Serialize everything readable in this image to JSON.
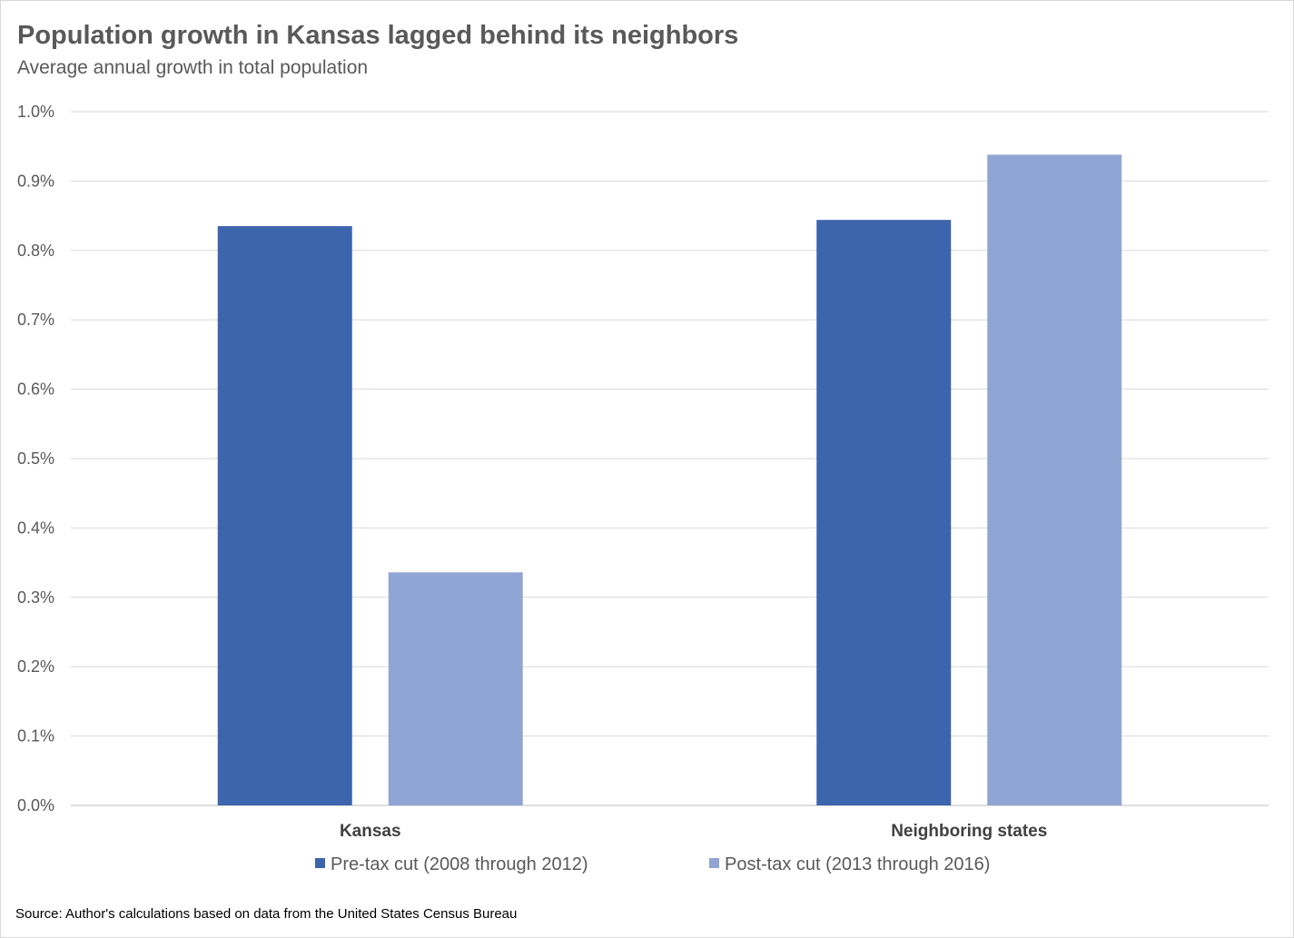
{
  "chart_data": {
    "type": "bar",
    "title": "Population growth in Kansas lagged behind its neighbors",
    "subtitle": "Average annual growth in total population",
    "categories": [
      "Kansas",
      "Neighboring states"
    ],
    "series": [
      {
        "name": "Pre-tax cut (2008 through 2012)",
        "values": [
          0.835,
          0.844
        ],
        "color": "#3c65ad"
      },
      {
        "name": "Post-tax cut (2013 through 2016)",
        "values": [
          0.336,
          0.938
        ],
        "color": "#91a5d4"
      }
    ],
    "y_ticks": [
      "0.0%",
      "0.1%",
      "0.2%",
      "0.3%",
      "0.4%",
      "0.5%",
      "0.6%",
      "0.7%",
      "0.8%",
      "0.9%",
      "1.0%"
    ],
    "ylim": [
      0,
      1.0
    ],
    "grid": true,
    "legend_position": "bottom",
    "source": "Source: Author's calculations based on data from the United States Census Bureau"
  }
}
